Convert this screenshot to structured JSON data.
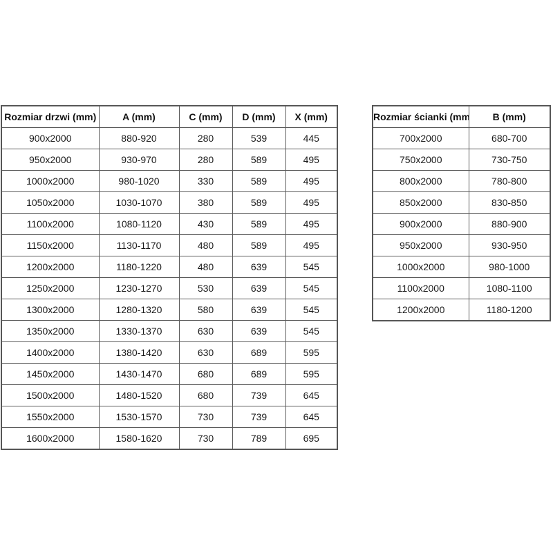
{
  "page": {
    "background_color": "#ffffff",
    "border_color": "#5a5a5a",
    "text_color": "#1a1a1a"
  },
  "door_table": {
    "headers": [
      "Rozmiar drzwi (mm)",
      "A (mm)",
      "C (mm)",
      "D (mm)",
      "X (mm)"
    ],
    "rows": [
      [
        "900x2000",
        "880-920",
        "280",
        "539",
        "445"
      ],
      [
        "950x2000",
        "930-970",
        "280",
        "589",
        "495"
      ],
      [
        "1000x2000",
        "980-1020",
        "330",
        "589",
        "495"
      ],
      [
        "1050x2000",
        "1030-1070",
        "380",
        "589",
        "495"
      ],
      [
        "1100x2000",
        "1080-1120",
        "430",
        "589",
        "495"
      ],
      [
        "1150x2000",
        "1130-1170",
        "480",
        "589",
        "495"
      ],
      [
        "1200x2000",
        "1180-1220",
        "480",
        "639",
        "545"
      ],
      [
        "1250x2000",
        "1230-1270",
        "530",
        "639",
        "545"
      ],
      [
        "1300x2000",
        "1280-1320",
        "580",
        "639",
        "545"
      ],
      [
        "1350x2000",
        "1330-1370",
        "630",
        "639",
        "545"
      ],
      [
        "1400x2000",
        "1380-1420",
        "630",
        "689",
        "595"
      ],
      [
        "1450x2000",
        "1430-1470",
        "680",
        "689",
        "595"
      ],
      [
        "1500x2000",
        "1480-1520",
        "680",
        "739",
        "645"
      ],
      [
        "1550x2000",
        "1530-1570",
        "730",
        "739",
        "645"
      ],
      [
        "1600x2000",
        "1580-1620",
        "730",
        "789",
        "695"
      ]
    ]
  },
  "wall_table": {
    "headers": [
      "Rozmiar ścianki (mm)",
      "B (mm)"
    ],
    "rows": [
      [
        "700x2000",
        "680-700"
      ],
      [
        "750x2000",
        "730-750"
      ],
      [
        "800x2000",
        "780-800"
      ],
      [
        "850x2000",
        "830-850"
      ],
      [
        "900x2000",
        "880-900"
      ],
      [
        "950x2000",
        "930-950"
      ],
      [
        "1000x2000",
        "980-1000"
      ],
      [
        "1100x2000",
        "1080-1100"
      ],
      [
        "1200x2000",
        "1180-1200"
      ]
    ]
  }
}
